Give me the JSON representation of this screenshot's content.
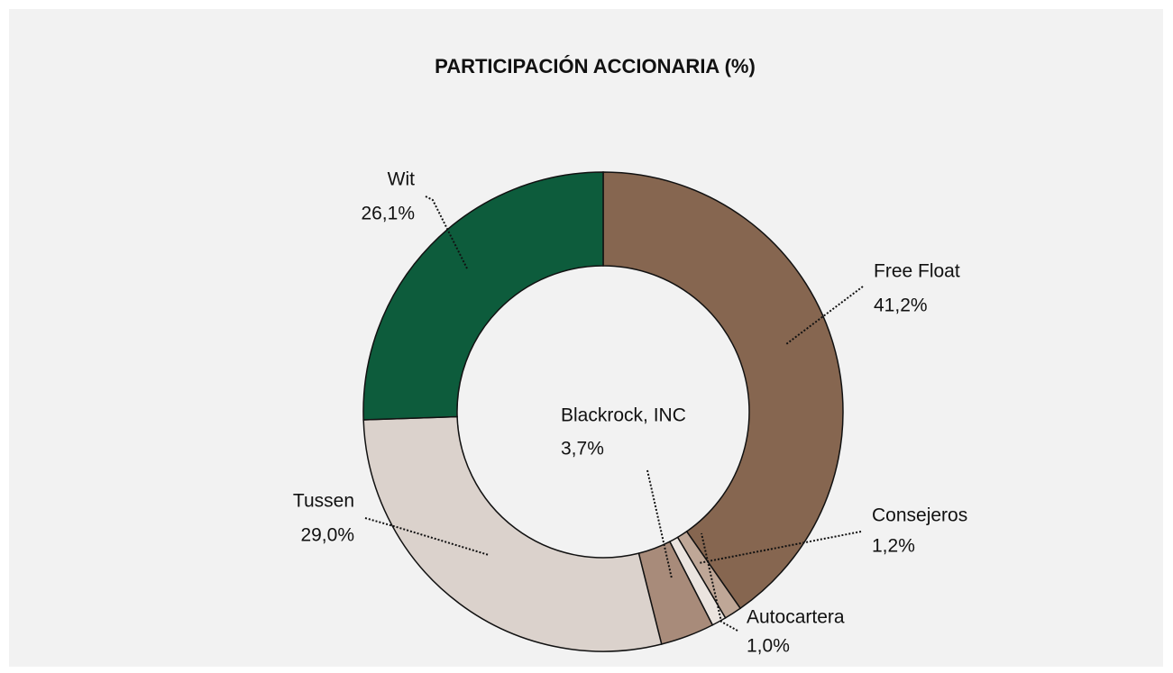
{
  "chart_data": {
    "type": "donut",
    "title": "PARTICIPACIÓN ACCIONARIA (%)",
    "categories": [
      "Free Float",
      "Consejeros",
      "Autocartera",
      "Blackrock, INC",
      "Tussen",
      "Wit"
    ],
    "values": [
      41.2,
      1.2,
      1.0,
      3.7,
      29.0,
      26.1
    ],
    "value_labels": [
      "41,2%",
      "1,2%",
      "1,0%",
      "3,7%",
      "29,0%",
      "26,1%"
    ],
    "colors": [
      "#866650",
      "#bfa797",
      "#ebe4df",
      "#a88b7a",
      "#dbd2cc",
      "#0d5c3c"
    ]
  }
}
